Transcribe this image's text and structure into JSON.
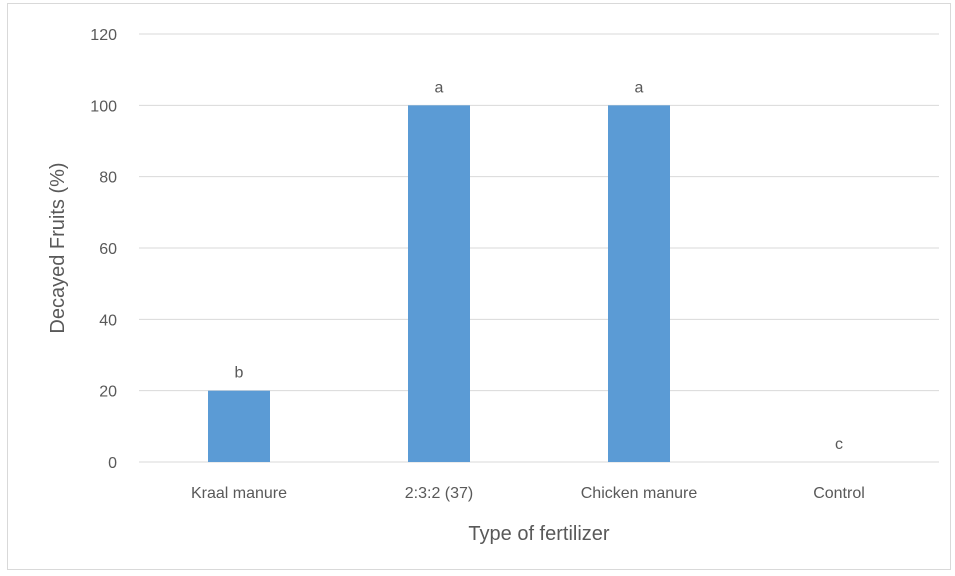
{
  "chart_data": {
    "type": "bar",
    "categories": [
      "Kraal manure",
      "2:3:2 (37)",
      "Chicken manure",
      "Control"
    ],
    "values": [
      20,
      100,
      100,
      0
    ],
    "data_labels": [
      "b",
      "a",
      "a",
      "c"
    ],
    "title": "",
    "xlabel": "Type of fertilizer",
    "ylabel": "Decayed Fruits (%)",
    "ylim": [
      0,
      120
    ],
    "yticks": [
      0,
      20,
      40,
      60,
      80,
      100,
      120
    ],
    "grid": true,
    "legend": "none",
    "colors": {
      "bar": "#5b9bd5",
      "grid": "#d9d9d9",
      "text": "#595959"
    }
  }
}
